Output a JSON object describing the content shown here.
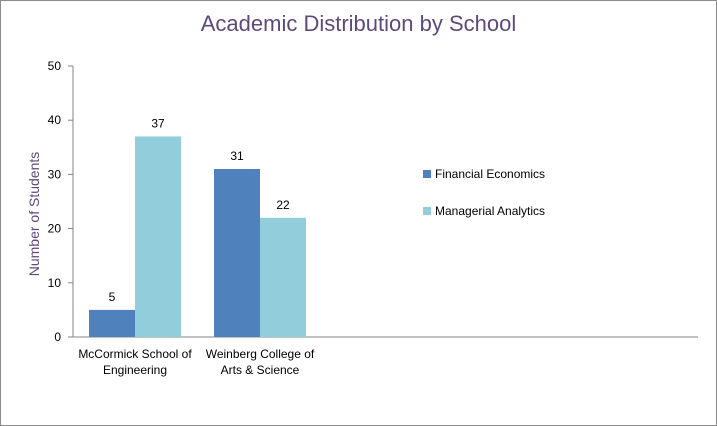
{
  "colors": {
    "financial_economics": "#4f81bd",
    "managerial_analytics": "#92cddc",
    "title": "#5f497a"
  },
  "chart_data": {
    "type": "bar",
    "title": "Academic Distribution by School",
    "ylabel": "Number of Students",
    "xlabel": "",
    "ylim": [
      0,
      50
    ],
    "yticks": [
      "0",
      "10",
      "20",
      "30",
      "40",
      "50"
    ],
    "categories": [
      [
        "McCormick School of",
        "Engineering"
      ],
      [
        "Weinberg College of",
        "Arts & Science"
      ]
    ],
    "series": [
      {
        "name": "Financial Economics",
        "values": [
          5,
          31
        ]
      },
      {
        "name": "Managerial Analytics",
        "values": [
          37,
          22
        ]
      }
    ],
    "grid": false,
    "legend_position": "right"
  }
}
